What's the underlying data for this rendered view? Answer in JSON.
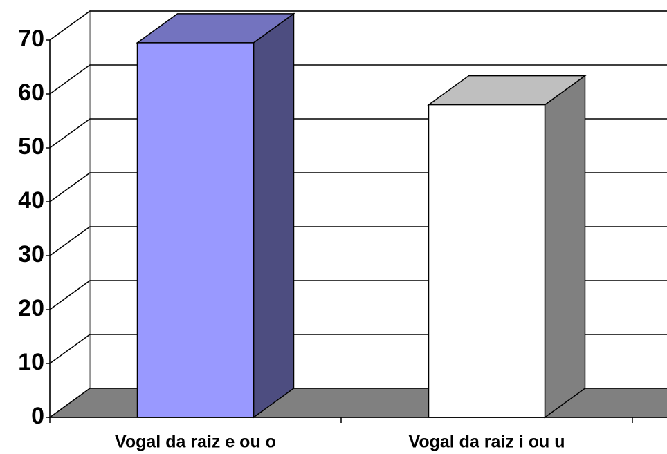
{
  "chart_data": {
    "type": "bar3d",
    "categories": [
      "Vogal da raiz e ou o",
      "Vogal da raiz i ou u"
    ],
    "values": [
      69.5,
      58
    ],
    "colors": [
      "#9999ff",
      "#ffffff"
    ],
    "ylim": [
      0,
      70
    ],
    "yticks": [
      0,
      10,
      20,
      30,
      40,
      50,
      60,
      70
    ],
    "grid": true
  }
}
